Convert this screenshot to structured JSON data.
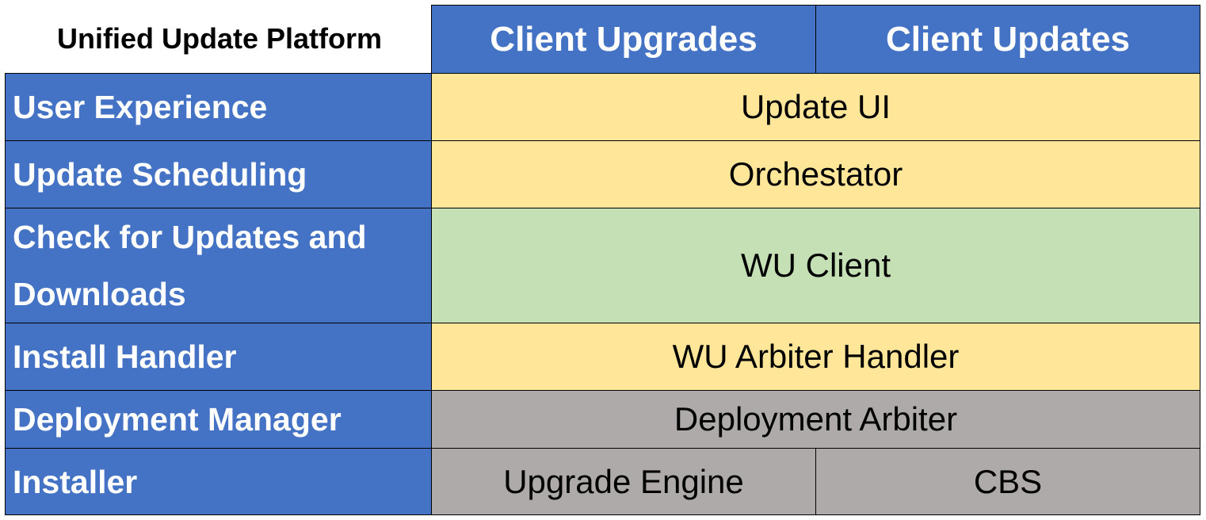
{
  "title": "Unified Update Platform",
  "columns": [
    "Client Upgrades",
    "Client Updates"
  ],
  "colors": {
    "header": "#4472C4",
    "yellow": "#FFE699",
    "green": "#C5E0B4",
    "gray": "#AEAAAA"
  },
  "rows": [
    {
      "label": "User Experience",
      "value": "Update UI"
    },
    {
      "label": "Update Scheduling",
      "value": "Orchestator"
    },
    {
      "label": "Check for Updates and Downloads",
      "value": "WU Client"
    },
    {
      "label": "Install Handler",
      "value": "WU Arbiter Handler"
    },
    {
      "label": "Deployment Manager",
      "value": "Deployment Arbiter"
    },
    {
      "label": "Installer",
      "values": [
        "Upgrade Engine",
        "CBS"
      ]
    }
  ]
}
